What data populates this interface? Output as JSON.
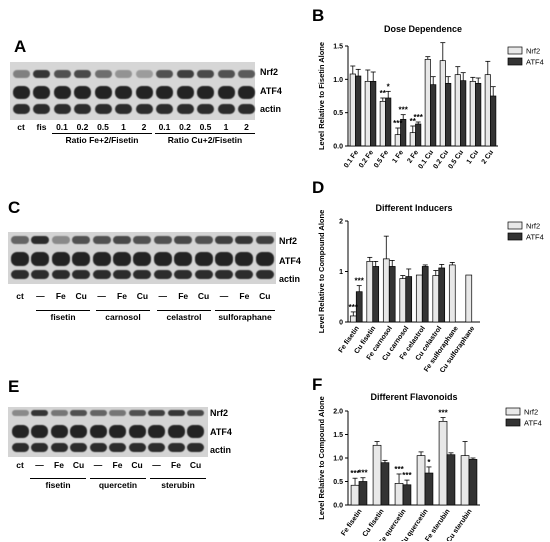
{
  "panels": {
    "A": {
      "label": "A",
      "band_labels": [
        "Nrf2",
        "ATF4",
        "actin"
      ],
      "lanes": [
        "ct",
        "fis",
        "0.1",
        "0.2",
        "0.5",
        "1",
        "2",
        "0.1",
        "0.2",
        "0.5",
        "1",
        "2"
      ],
      "groups": [
        "Ratio Fe+2/Fisetin",
        "Ratio Cu+2/Fisetin"
      ]
    },
    "C": {
      "label": "C",
      "band_labels": [
        "Nrf2",
        "ATF4",
        "actin"
      ],
      "lanes": [
        "ct",
        "—",
        "Fe",
        "Cu",
        "—",
        "Fe",
        "Cu",
        "—",
        "Fe",
        "Cu",
        "—",
        "Fe",
        "Cu"
      ],
      "groups": [
        "fisetin",
        "carnosol",
        "celastrol",
        "sulforaphane"
      ]
    },
    "E": {
      "label": "E",
      "band_labels": [
        "Nrf2",
        "ATF4",
        "actin"
      ],
      "lanes": [
        "ct",
        "—",
        "Fe",
        "Cu",
        "—",
        "Fe",
        "Cu",
        "—",
        "Fe",
        "Cu"
      ],
      "groups": [
        "fisetin",
        "quercetin",
        "sterubin"
      ]
    }
  },
  "chart_data": [
    {
      "panel": "B",
      "type": "bar",
      "title": "Dose Dependence",
      "ylabel": "Level Relative to Fisetin Alone",
      "ylim": [
        0,
        1.5
      ],
      "yticks": [
        "0.0",
        "0.5",
        "1.0",
        "1.5"
      ],
      "categories": [
        "0.1 Fe",
        "0.2 Fe",
        "0.5 Fe",
        "1 Fe",
        "2 Fe",
        "0.1 Cu",
        "0.2 Cu",
        "0.5 Cu",
        "1 Cu",
        "2 Cu"
      ],
      "legend": [
        "Nrf2",
        "ATF4"
      ],
      "colors": [
        "#e8e8e8",
        "#333333"
      ],
      "series": [
        {
          "name": "Nrf2",
          "values": [
            1.08,
            0.97,
            0.67,
            0.17,
            0.2,
            1.3,
            1.28,
            1.07,
            0.97,
            1.07
          ],
          "errors": [
            0.12,
            0.17,
            0.05,
            0.1,
            0.1,
            0.04,
            0.27,
            0.12,
            0.06,
            0.2
          ]
        },
        {
          "name": "ATF4",
          "values": [
            1.05,
            0.97,
            0.72,
            0.4,
            0.33,
            0.92,
            0.94,
            0.98,
            0.94,
            0.75
          ],
          "errors": [
            0.1,
            0.14,
            0.1,
            0.07,
            0.03,
            0.12,
            0.1,
            0.12,
            0.08,
            0.14
          ]
        }
      ],
      "annotations": [
        {
          "text": "**",
          "cat": 2,
          "series": 0
        },
        {
          "text": "*",
          "cat": 2,
          "series": 1
        },
        {
          "text": "***",
          "cat": 3,
          "series": 0
        },
        {
          "text": "***",
          "cat": 3,
          "series": 1
        },
        {
          "text": "**",
          "cat": 4,
          "series": 0
        },
        {
          "text": "***",
          "cat": 4,
          "series": 1
        }
      ]
    },
    {
      "panel": "D",
      "type": "bar",
      "title": "Different Inducers",
      "ylabel": "Level Relative to Compound Alone",
      "ylim": [
        0,
        2
      ],
      "yticks": [
        "0",
        "1",
        "2"
      ],
      "categories": [
        "Fe fisetin",
        "Cu fisetin",
        "Fe carnosol",
        "Cu carnosol",
        "Fe celastrol",
        "Cu celastrol",
        "Fe sulforaphane",
        "Cu sulforaphane"
      ],
      "legend": [
        "Nrf2",
        "ATF4"
      ],
      "colors": [
        "#e8e8e8",
        "#333333"
      ],
      "series": [
        {
          "name": "Nrf2",
          "values": [
            0.12,
            1.2,
            1.25,
            0.86,
            0.93,
            0.92,
            1.13,
            0.93
          ],
          "errors": [
            0.08,
            0.08,
            0.45,
            0.06,
            0.0,
            0.1,
            0.05,
            0.0
          ]
        },
        {
          "name": "ATF4",
          "values": [
            0.6,
            1.1,
            1.1,
            0.9,
            1.1,
            1.07,
            null,
            null
          ],
          "errors": [
            0.12,
            0.1,
            0.12,
            0.15,
            0.03,
            0.07,
            0,
            0
          ]
        }
      ],
      "annotations": [
        {
          "text": "***",
          "cat": 0,
          "series": 0
        },
        {
          "text": "***",
          "cat": 0,
          "series": 1
        }
      ]
    },
    {
      "panel": "F",
      "type": "bar",
      "title": "Different Flavonoids",
      "ylabel": "Level Relative to Compound Alone",
      "ylim": [
        0,
        2.0
      ],
      "yticks": [
        "0.0",
        "0.5",
        "1.0",
        "1.5",
        "2.0"
      ],
      "categories": [
        "Fe fisetin",
        "Cu fisetin",
        "Fe quercetin",
        "Cu quercetin",
        "Fe sterubin",
        "Cu sterubin"
      ],
      "legend": [
        "Nrf2",
        "ATF4"
      ],
      "colors": [
        "#e8e8e8",
        "#333333"
      ],
      "series": [
        {
          "name": "Nrf2",
          "values": [
            0.42,
            1.27,
            0.46,
            1.05,
            1.78,
            1.05
          ],
          "errors": [
            0.15,
            0.08,
            0.2,
            0.08,
            0.08,
            0.3
          ]
        },
        {
          "name": "ATF4",
          "values": [
            0.5,
            0.9,
            0.43,
            0.68,
            1.07,
            0.97
          ],
          "errors": [
            0.08,
            0.05,
            0.1,
            0.13,
            0.04,
            0.03
          ]
        }
      ],
      "annotations": [
        {
          "text": "***",
          "cat": 0,
          "series": 0
        },
        {
          "text": "***",
          "cat": 0,
          "series": 1
        },
        {
          "text": "***",
          "cat": 2,
          "series": 0
        },
        {
          "text": "***",
          "cat": 2,
          "series": 1
        },
        {
          "text": "*",
          "cat": 3,
          "series": 1
        },
        {
          "text": "***",
          "cat": 4,
          "series": 0
        }
      ]
    }
  ]
}
